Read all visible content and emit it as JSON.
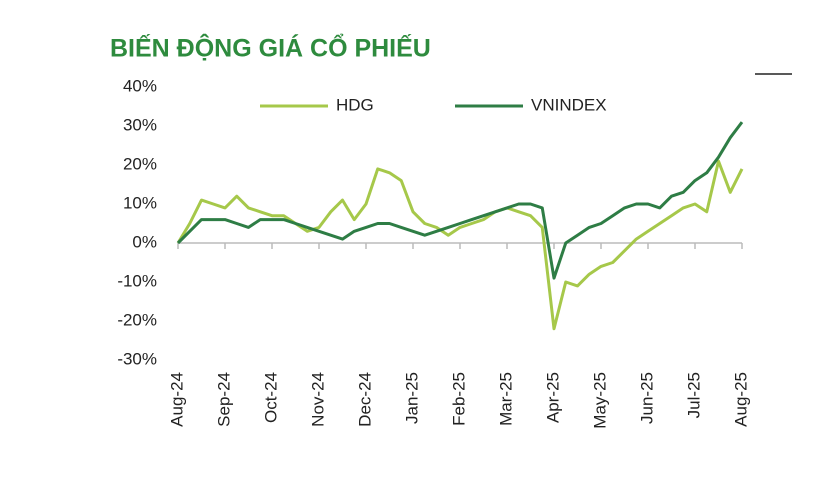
{
  "chart_data": {
    "type": "line",
    "title": "BIẾN ĐỘNG GIÁ CỔ PHIẾU",
    "categories": [
      "Aug-24",
      null,
      null,
      null,
      "Sep-24",
      null,
      null,
      null,
      "Oct-24",
      null,
      null,
      null,
      "Nov-24",
      null,
      null,
      null,
      "Dec-24",
      null,
      null,
      null,
      "Jan-25",
      null,
      null,
      null,
      "Feb-25",
      null,
      null,
      null,
      "Mar-25",
      null,
      null,
      null,
      "Apr-25",
      null,
      null,
      null,
      "May-25",
      null,
      null,
      null,
      "Jun-25",
      null,
      null,
      null,
      "Jul-25",
      null,
      null,
      null,
      "Aug-25"
    ],
    "series": [
      {
        "name": "HDG",
        "color": "#a6c84a",
        "values": [
          0,
          5,
          11,
          10,
          9,
          12,
          9,
          8,
          7,
          7,
          5,
          3,
          4,
          8,
          11,
          6,
          10,
          19,
          18,
          16,
          8,
          5,
          4,
          2,
          4,
          5,
          6,
          8,
          9,
          8,
          7,
          4,
          -22,
          -10,
          -11,
          -8,
          -6,
          -5,
          -2,
          1,
          3,
          5,
          7,
          9,
          10,
          8,
          21,
          13,
          19
        ]
      },
      {
        "name": "VNINDEX",
        "color": "#2e7d45",
        "values": [
          0,
          3,
          6,
          6,
          6,
          5,
          4,
          6,
          6,
          6,
          5,
          4,
          3,
          2,
          1,
          3,
          4,
          5,
          5,
          4,
          3,
          2,
          3,
          4,
          5,
          6,
          7,
          8,
          9,
          10,
          10,
          9,
          -9,
          0,
          2,
          4,
          5,
          7,
          9,
          10,
          10,
          9,
          12,
          13,
          16,
          18,
          22,
          27,
          31
        ]
      }
    ],
    "ylim": [
      -30,
      40
    ],
    "yticks": [
      {
        "value": -30,
        "label": "-30%"
      },
      {
        "value": -20,
        "label": "-20%"
      },
      {
        "value": -10,
        "label": "-10%"
      },
      {
        "value": 0,
        "label": "0%"
      },
      {
        "value": 10,
        "label": "10%"
      },
      {
        "value": 20,
        "label": "20%"
      },
      {
        "value": 30,
        "label": "30%"
      },
      {
        "value": 40,
        "label": "40%"
      }
    ],
    "legend": "top"
  }
}
